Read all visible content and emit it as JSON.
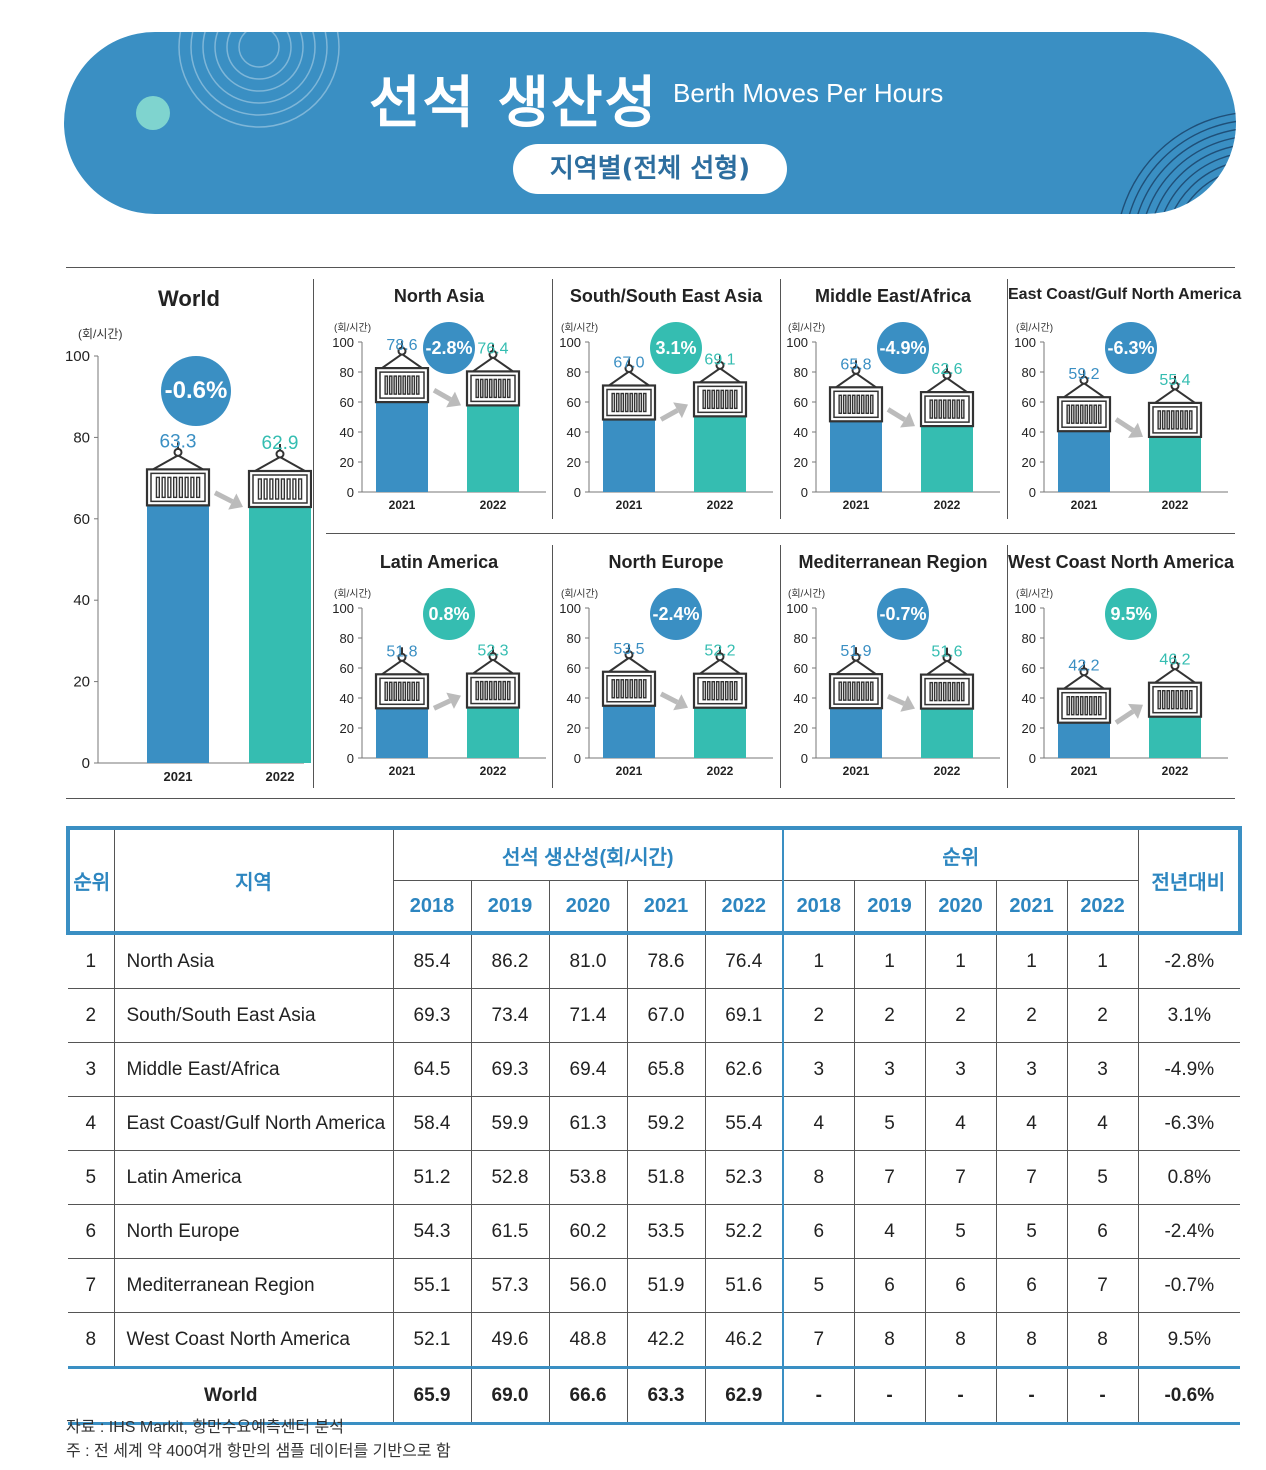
{
  "header": {
    "title_ko": "선석 생산성",
    "title_en": "Berth Moves Per Hours",
    "subtitle": "지역별(전체 선형)"
  },
  "chart_data": [
    {
      "type": "bar",
      "title": "World",
      "ylabel": "(회/시간)",
      "categories": [
        "2021",
        "2022"
      ],
      "values": [
        63.3,
        62.9
      ],
      "change": "-0.6%",
      "ylim": [
        0,
        100
      ],
      "yticks": [
        0,
        20,
        40,
        60,
        80,
        100
      ]
    },
    {
      "type": "bar",
      "title": "North Asia",
      "ylabel": "(회/시간)",
      "categories": [
        "2021",
        "2022"
      ],
      "values": [
        78.6,
        76.4
      ],
      "change": "-2.8%",
      "ylim": [
        0,
        100
      ],
      "yticks": [
        0,
        20,
        40,
        60,
        80,
        100
      ]
    },
    {
      "type": "bar",
      "title": "South/South East Asia",
      "ylabel": "(회/시간)",
      "categories": [
        "2021",
        "2022"
      ],
      "values": [
        67.0,
        69.1
      ],
      "change": "3.1%",
      "ylim": [
        0,
        100
      ],
      "yticks": [
        0,
        20,
        40,
        60,
        80,
        100
      ]
    },
    {
      "type": "bar",
      "title": "Middle East/Africa",
      "ylabel": "(회/시간)",
      "categories": [
        "2021",
        "2022"
      ],
      "values": [
        65.8,
        62.6
      ],
      "change": "-4.9%",
      "ylim": [
        0,
        100
      ],
      "yticks": [
        0,
        20,
        40,
        60,
        80,
        100
      ]
    },
    {
      "type": "bar",
      "title": "East Coast/Gulf North America",
      "ylabel": "(회/시간)",
      "categories": [
        "2021",
        "2022"
      ],
      "values": [
        59.2,
        55.4
      ],
      "change": "-6.3%",
      "ylim": [
        0,
        100
      ],
      "yticks": [
        0,
        20,
        40,
        60,
        80,
        100
      ]
    },
    {
      "type": "bar",
      "title": "Latin America",
      "ylabel": "(회/시간)",
      "categories": [
        "2021",
        "2022"
      ],
      "values": [
        51.8,
        52.3
      ],
      "change": "0.8%",
      "ylim": [
        0,
        100
      ],
      "yticks": [
        0,
        20,
        40,
        60,
        80,
        100
      ]
    },
    {
      "type": "bar",
      "title": "North Europe",
      "ylabel": "(회/시간)",
      "categories": [
        "2021",
        "2022"
      ],
      "values": [
        53.5,
        52.2
      ],
      "change": "-2.4%",
      "ylim": [
        0,
        100
      ],
      "yticks": [
        0,
        20,
        40,
        60,
        80,
        100
      ]
    },
    {
      "type": "bar",
      "title": "Mediterranean Region",
      "ylabel": "(회/시간)",
      "categories": [
        "2021",
        "2022"
      ],
      "values": [
        51.9,
        51.6
      ],
      "change": "-0.7%",
      "ylim": [
        0,
        100
      ],
      "yticks": [
        0,
        20,
        40,
        60,
        80,
        100
      ]
    },
    {
      "type": "bar",
      "title": "West Coast North America",
      "ylabel": "(회/시간)",
      "categories": [
        "2021",
        "2022"
      ],
      "values": [
        42.2,
        46.2
      ],
      "change": "9.5%",
      "ylim": [
        0,
        100
      ],
      "yticks": [
        0,
        20,
        40,
        60,
        80,
        100
      ]
    }
  ],
  "colors": {
    "y2021": "#3a8fc3",
    "y2022": "#35bdb1",
    "negative": "#3a8fc3",
    "positive": "#35bdb1"
  },
  "table": {
    "headers": {
      "rank": "순위",
      "region": "지역",
      "productivity": "선석 생산성(회/시간)",
      "ranking": "순위",
      "yoy": "전년대비",
      "years": [
        "2018",
        "2019",
        "2020",
        "2021",
        "2022"
      ]
    },
    "rows": [
      {
        "rank": "1",
        "region": "North Asia",
        "prod": [
          "85.4",
          "86.2",
          "81.0",
          "78.6",
          "76.4"
        ],
        "ranks": [
          "1",
          "1",
          "1",
          "1",
          "1"
        ],
        "yoy": "-2.8%"
      },
      {
        "rank": "2",
        "region": "South/South East Asia",
        "prod": [
          "69.3",
          "73.4",
          "71.4",
          "67.0",
          "69.1"
        ],
        "ranks": [
          "2",
          "2",
          "2",
          "2",
          "2"
        ],
        "yoy": "3.1%"
      },
      {
        "rank": "3",
        "region": "Middle East/Africa",
        "prod": [
          "64.5",
          "69.3",
          "69.4",
          "65.8",
          "62.6"
        ],
        "ranks": [
          "3",
          "3",
          "3",
          "3",
          "3"
        ],
        "yoy": "-4.9%"
      },
      {
        "rank": "4",
        "region": "East Coast/Gulf North America",
        "prod": [
          "58.4",
          "59.9",
          "61.3",
          "59.2",
          "55.4"
        ],
        "ranks": [
          "4",
          "5",
          "4",
          "4",
          "4"
        ],
        "yoy": "-6.3%"
      },
      {
        "rank": "5",
        "region": "Latin America",
        "prod": [
          "51.2",
          "52.8",
          "53.8",
          "51.8",
          "52.3"
        ],
        "ranks": [
          "8",
          "7",
          "7",
          "7",
          "5"
        ],
        "yoy": "0.8%"
      },
      {
        "rank": "6",
        "region": "North Europe",
        "prod": [
          "54.3",
          "61.5",
          "60.2",
          "53.5",
          "52.2"
        ],
        "ranks": [
          "6",
          "4",
          "5",
          "5",
          "6"
        ],
        "yoy": "-2.4%"
      },
      {
        "rank": "7",
        "region": "Mediterranean Region",
        "prod": [
          "55.1",
          "57.3",
          "56.0",
          "51.9",
          "51.6"
        ],
        "ranks": [
          "5",
          "6",
          "6",
          "6",
          "7"
        ],
        "yoy": "-0.7%"
      },
      {
        "rank": "8",
        "region": "West Coast North America",
        "prod": [
          "52.1",
          "49.6",
          "48.8",
          "42.2",
          "46.2"
        ],
        "ranks": [
          "7",
          "8",
          "8",
          "8",
          "8"
        ],
        "yoy": "9.5%"
      }
    ],
    "world": {
      "label": "World",
      "prod": [
        "65.9",
        "69.0",
        "66.6",
        "63.3",
        "62.9"
      ],
      "ranks": [
        "-",
        "-",
        "-",
        "-",
        "-"
      ],
      "yoy": "-0.6%"
    }
  },
  "notes": [
    "자료 : IHS Markit, 항만수요예측센터 분석",
    "주 : 전 세계 약 400여개 항만의 샘플 데이터를 기반으로 함"
  ]
}
